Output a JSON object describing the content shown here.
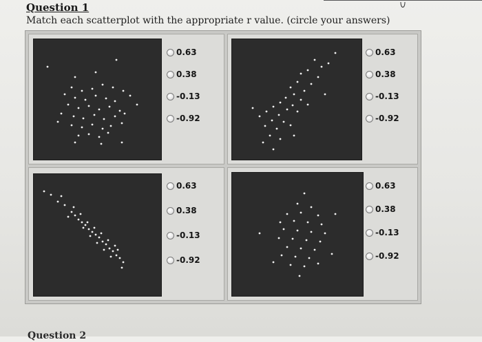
{
  "header": {
    "title": "Question 1",
    "instruction": "Match each scatterplot with the appropriate r value. (circle your answers)"
  },
  "panels": [
    {
      "options": [
        "0.63",
        "0.38",
        "-0.13",
        "-0.92"
      ]
    },
    {
      "options": [
        "0.63",
        "0.38",
        "-0.13",
        "-0.92"
      ]
    },
    {
      "options": [
        "0.63",
        "0.38",
        "-0.13",
        "-0.92"
      ]
    },
    {
      "options": [
        "0.63",
        "0.38",
        "-0.13",
        "-0.92"
      ]
    }
  ],
  "footer": {
    "next_question_partial": "Question 2"
  },
  "colors": {
    "plot_background": "#2c2c2c",
    "point": "#f2f2f2",
    "panel": "#dcdcd9"
  },
  "icons": {
    "option_control": "radio-button-icon"
  }
}
